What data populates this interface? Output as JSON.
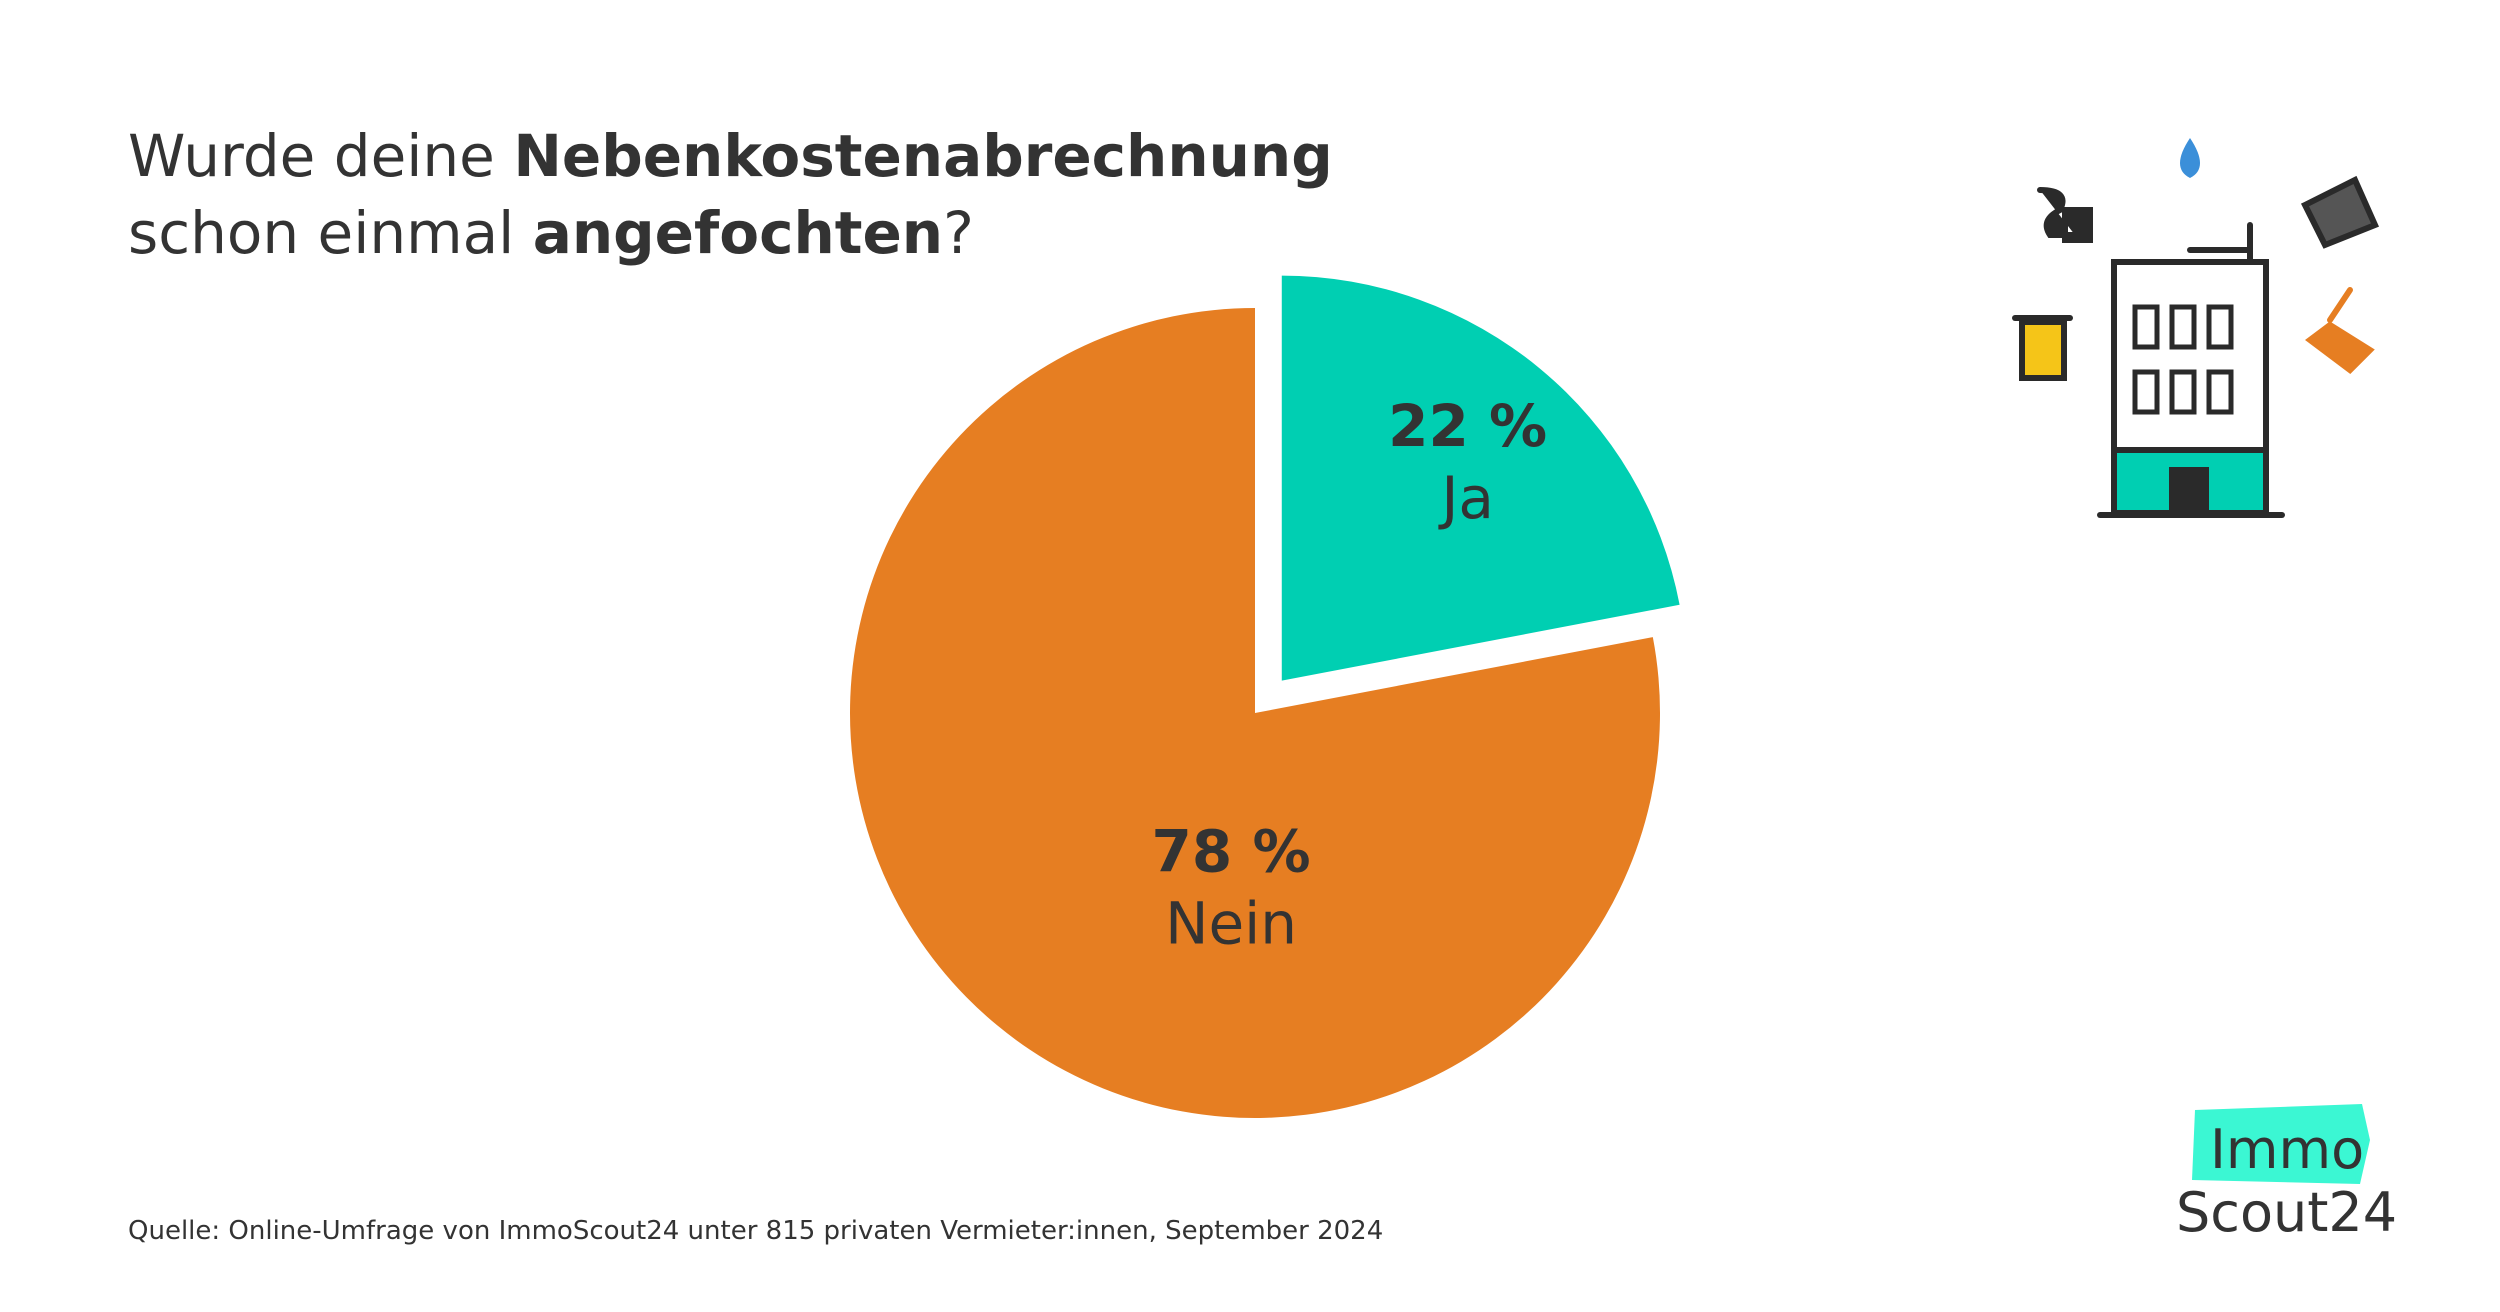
{
  "chart_data": {
    "type": "pie",
    "title": [
      [
        {
          "text": "Wurde deine "
        },
        {
          "text": "Nebenkostenabrechnung",
          "bold": true
        }
      ],
      [
        {
          "text": "schon einmal "
        },
        {
          "text": "angefochten",
          "bold": true
        },
        {
          "text": "?"
        }
      ]
    ],
    "categories": [
      "Ja",
      "Nein"
    ],
    "values": [
      22,
      78
    ],
    "value_labels": [
      "22 %",
      "78 %"
    ],
    "colors": [
      "#00cfb2",
      "#e67e22"
    ],
    "explode": [
      true,
      false
    ],
    "source": "Quelle: Online-Umfrage von ImmoScout24 unter 815 privaten Vermieter:innen, September 2024",
    "logo": [
      "Immo",
      "Scout24"
    ]
  }
}
